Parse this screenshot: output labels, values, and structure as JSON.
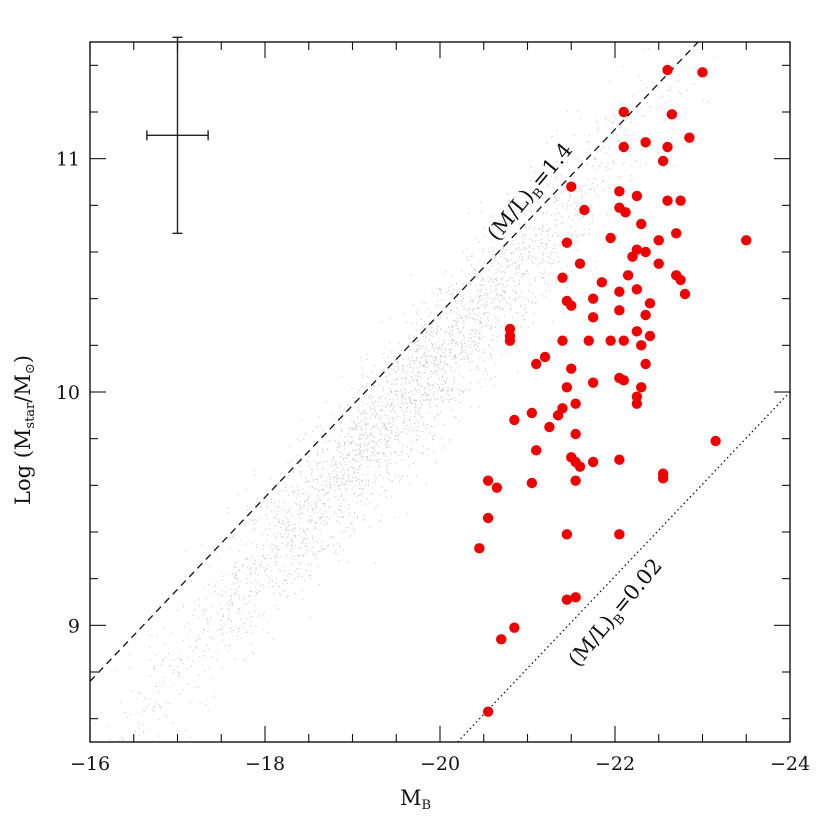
{
  "chart_data": {
    "type": "scatter",
    "title": "",
    "xlabel": {
      "main": "M",
      "sub": "B"
    },
    "ylabel": {
      "prefix": "Log (M",
      "sub1": "star",
      "mid": "/M",
      "sub2": "⊙",
      "suffix": ")"
    },
    "xlim": [
      -16,
      -24
    ],
    "ylim": [
      8.5,
      11.5
    ],
    "xticks": [
      -16,
      -18,
      -20,
      -22,
      -24
    ],
    "xtick_labels": [
      "−16",
      "−18",
      "−20",
      "−22",
      "−24"
    ],
    "yticks": [
      9,
      10,
      11
    ],
    "ytick_labels": [
      "9",
      "10",
      "11"
    ],
    "grid": false,
    "legend": "none",
    "colors": {
      "cloud": "#b4b4b4",
      "points": "#ee0000",
      "lines": "#111111"
    },
    "background_cloud": {
      "description": "dense grey point cloud along the ridge",
      "ridge": [
        [
          -16.2,
          8.45
        ],
        [
          -17,
          8.8
        ],
        [
          -18,
          9.25
        ],
        [
          -19,
          9.7
        ],
        [
          -20,
          10.15
        ],
        [
          -21,
          10.6
        ],
        [
          -22,
          11.05
        ],
        [
          -22.8,
          11.4
        ]
      ]
    },
    "reference_lines": [
      {
        "label": {
          "main": "(M/L)",
          "sub": "B",
          "suffix": "=1.4"
        },
        "style": "dashed",
        "points": [
          [
            -16,
            8.76
          ],
          [
            -23.0,
            11.52
          ]
        ]
      },
      {
        "label": {
          "main": "(M/L)",
          "sub": "B",
          "suffix": "=0.02"
        },
        "style": "dotted",
        "points": [
          [
            -20.2,
            8.5
          ],
          [
            -24,
            10.0
          ]
        ]
      }
    ],
    "error_bar": {
      "x": -17.0,
      "y": 11.1,
      "x_err": 0.35,
      "y_err": 0.42
    },
    "series": [
      {
        "points": [
          [
            -22.6,
            11.38
          ],
          [
            -23.0,
            11.37
          ],
          [
            -22.1,
            11.2
          ],
          [
            -22.65,
            11.19
          ],
          [
            -22.35,
            11.07
          ],
          [
            -22.1,
            11.05
          ],
          [
            -22.85,
            11.09
          ],
          [
            -22.6,
            11.05
          ],
          [
            -22.55,
            10.99
          ],
          [
            -21.5,
            10.88
          ],
          [
            -22.05,
            10.86
          ],
          [
            -22.25,
            10.84
          ],
          [
            -22.05,
            10.79
          ],
          [
            -22.12,
            10.77
          ],
          [
            -22.6,
            10.82
          ],
          [
            -22.75,
            10.82
          ],
          [
            -21.65,
            10.78
          ],
          [
            -22.3,
            10.72
          ],
          [
            -22.7,
            10.68
          ],
          [
            -21.95,
            10.66
          ],
          [
            -22.5,
            10.65
          ],
          [
            -23.5,
            10.65
          ],
          [
            -21.45,
            10.64
          ],
          [
            -22.25,
            10.61
          ],
          [
            -22.35,
            10.6
          ],
          [
            -22.2,
            10.58
          ],
          [
            -21.6,
            10.55
          ],
          [
            -22.5,
            10.55
          ],
          [
            -22.15,
            10.5
          ],
          [
            -22.7,
            10.5
          ],
          [
            -22.75,
            10.48
          ],
          [
            -21.4,
            10.49
          ],
          [
            -21.85,
            10.47
          ],
          [
            -22.05,
            10.43
          ],
          [
            -22.25,
            10.44
          ],
          [
            -22.8,
            10.42
          ],
          [
            -21.75,
            10.4
          ],
          [
            -22.4,
            10.38
          ],
          [
            -21.5,
            10.37
          ],
          [
            -21.45,
            10.39
          ],
          [
            -22.05,
            10.35
          ],
          [
            -22.35,
            10.33
          ],
          [
            -21.75,
            10.32
          ],
          [
            -20.8,
            10.27
          ],
          [
            -20.8,
            10.24
          ],
          [
            -20.8,
            10.22
          ],
          [
            -22.25,
            10.26
          ],
          [
            -22.4,
            10.24
          ],
          [
            -21.95,
            10.22
          ],
          [
            -22.1,
            10.22
          ],
          [
            -22.3,
            10.2
          ],
          [
            -21.7,
            10.22
          ],
          [
            -21.4,
            10.22
          ],
          [
            -21.2,
            10.15
          ],
          [
            -21.1,
            10.12
          ],
          [
            -22.35,
            10.12
          ],
          [
            -21.5,
            10.1
          ],
          [
            -22.05,
            10.06
          ],
          [
            -22.1,
            10.05
          ],
          [
            -21.75,
            10.04
          ],
          [
            -22.3,
            10.02
          ],
          [
            -21.45,
            10.02
          ],
          [
            -22.25,
            9.98
          ],
          [
            -22.25,
            9.95
          ],
          [
            -21.55,
            9.95
          ],
          [
            -21.4,
            9.93
          ],
          [
            -21.05,
            9.91
          ],
          [
            -21.35,
            9.9
          ],
          [
            -20.85,
            9.88
          ],
          [
            -21.25,
            9.85
          ],
          [
            -21.55,
            9.82
          ],
          [
            -21.1,
            9.75
          ],
          [
            -21.5,
            9.72
          ],
          [
            -21.55,
            9.7
          ],
          [
            -21.75,
            9.7
          ],
          [
            -22.05,
            9.71
          ],
          [
            -21.6,
            9.68
          ],
          [
            -21.55,
            9.62
          ],
          [
            -22.55,
            9.65
          ],
          [
            -22.55,
            9.63
          ],
          [
            -21.05,
            9.61
          ],
          [
            -20.55,
            9.62
          ],
          [
            -20.65,
            9.59
          ],
          [
            -23.15,
            9.79
          ],
          [
            -20.55,
            9.46
          ],
          [
            -21.45,
            9.39
          ],
          [
            -22.05,
            9.39
          ],
          [
            -20.45,
            9.33
          ],
          [
            -21.55,
            9.12
          ],
          [
            -21.45,
            9.11
          ],
          [
            -20.85,
            8.99
          ],
          [
            -20.7,
            8.94
          ],
          [
            -20.55,
            8.63
          ]
        ]
      }
    ]
  }
}
